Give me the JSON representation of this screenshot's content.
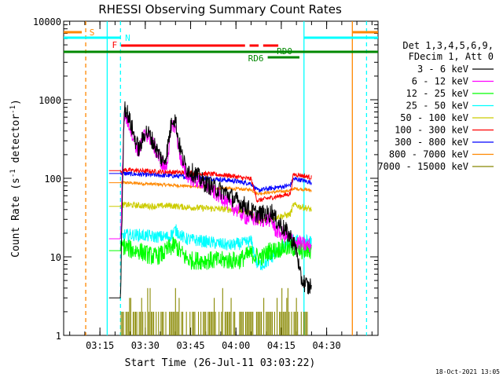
{
  "chart_data": {
    "type": "line",
    "title": "RHESSI Observing Summary Count Rates",
    "xlabel": "Start Time (26-Jul-11 03:03:22)",
    "ylabel": "Count Rate (s⁻¹ detector⁻¹)",
    "ylabel_main": "Count Rate (s",
    "ylabel_sup1": "-1",
    "ylabel_mid": " detector",
    "ylabel_sup2": "-1",
    "ylabel_end": ")",
    "y_scale": "log",
    "ylim": [
      1,
      10000
    ],
    "xlim_minutes": [
      0,
      104
    ],
    "x_ticks": [
      "03:15",
      "03:30",
      "03:45",
      "04:00",
      "04:15",
      "04:30"
    ],
    "y_ticks": [
      "1",
      "10",
      "100",
      "1000",
      "10000"
    ],
    "legend_position": "right",
    "legend_header": [
      "Det 1,3,4,5,6,9,",
      "FDecim 1, Att 0"
    ],
    "timestamp": "18-Oct-2021 13:05",
    "series": [
      {
        "name": "3 - 6 keV",
        "color": "#000000",
        "x": [
          15,
          17,
          18,
          18.8,
          20,
          21,
          21.5,
          22.5,
          24,
          25,
          26,
          27,
          28.5,
          30,
          31,
          32,
          33,
          34,
          35,
          36,
          37,
          38,
          39,
          40,
          41,
          42,
          43,
          44,
          45,
          46,
          48,
          50,
          53,
          55,
          57,
          60,
          62,
          64,
          66,
          68,
          69,
          70,
          72,
          74,
          75,
          76,
          77,
          77.5,
          78,
          79,
          80,
          81,
          82
        ],
        "y": [
          3,
          3,
          3,
          3,
          850,
          700,
          600,
          450,
          280,
          230,
          300,
          400,
          350,
          270,
          220,
          190,
          160,
          200,
          350,
          600,
          550,
          300,
          200,
          150,
          130,
          125,
          115,
          110,
          100,
          90,
          82,
          75,
          68,
          60,
          52,
          45,
          38,
          35,
          35,
          35,
          38,
          30,
          25,
          20,
          18,
          15,
          12,
          10,
          6,
          5,
          4.5,
          4,
          4.5
        ]
      },
      {
        "name": "6 - 12 keV",
        "color": "#ff00ff",
        "x": [
          15,
          18.8,
          20,
          21,
          21.5,
          22.5,
          24,
          25,
          26,
          27,
          28.5,
          30,
          31,
          32,
          33,
          34,
          35,
          36,
          37,
          38,
          39,
          40,
          42,
          45,
          48,
          50,
          53,
          55,
          58,
          60,
          62,
          64,
          66,
          68,
          69,
          70,
          72,
          74,
          75,
          76,
          77,
          78,
          80,
          82
        ],
        "y": [
          17,
          17,
          650,
          550,
          500,
          400,
          250,
          220,
          300,
          380,
          330,
          250,
          200,
          170,
          140,
          140,
          280,
          500,
          450,
          250,
          160,
          120,
          100,
          90,
          75,
          65,
          55,
          45,
          38,
          32,
          31,
          30,
          30,
          30,
          28,
          22,
          20,
          18,
          17,
          16,
          15,
          15,
          14,
          14
        ]
      },
      {
        "name": "12 - 25 keV",
        "color": "#00ff00",
        "x": [
          15,
          18.8,
          19.5,
          21,
          23,
          25,
          27,
          30,
          33,
          35,
          37,
          40,
          42,
          45,
          48,
          50,
          55,
          58,
          60,
          62,
          64,
          66,
          68,
          70,
          72,
          74,
          75,
          76,
          77,
          78,
          80,
          82
        ],
        "y": [
          12,
          12,
          14,
          13,
          12,
          12,
          11,
          10,
          11,
          13,
          14,
          10,
          9,
          9,
          9,
          9,
          9,
          9,
          10,
          11,
          10,
          10,
          12,
          12,
          13,
          13,
          13,
          13,
          13,
          12,
          12,
          12
        ]
      },
      {
        "name": "25 - 50 keV",
        "color": "#00ffff",
        "x": [
          15,
          18.8,
          20,
          25,
          30,
          35,
          37,
          40,
          45,
          50,
          55,
          60,
          62,
          64,
          66,
          68,
          70,
          72,
          74,
          75,
          76,
          78,
          80,
          82
        ],
        "y": [
          17,
          17,
          19,
          19,
          18,
          18,
          22,
          17,
          16,
          15,
          14,
          15,
          16,
          8,
          8,
          9,
          11,
          13,
          14,
          14,
          16,
          16,
          16,
          16
        ]
      },
      {
        "name": "50 - 100 keV",
        "color": "#cccc00",
        "x": [
          15,
          18.8,
          20,
          25,
          30,
          35,
          40,
          45,
          50,
          55,
          60,
          62,
          64,
          66,
          68,
          70,
          72,
          74,
          75,
          76,
          78,
          80,
          82
        ],
        "y": [
          44,
          44,
          46,
          45,
          44,
          45,
          43,
          42,
          41,
          40,
          38,
          37,
          28,
          29,
          30,
          32,
          33,
          34,
          35,
          46,
          44,
          42,
          40
        ]
      },
      {
        "name": "100 - 300 keV",
        "color": "#ff0000",
        "x": [
          15,
          18.8,
          20,
          25,
          30,
          35,
          40,
          45,
          50,
          55,
          60,
          62,
          64,
          66,
          68,
          70,
          72,
          74,
          75,
          76,
          78,
          80,
          82
        ],
        "y": [
          125,
          125,
          128,
          125,
          122,
          120,
          118,
          115,
          112,
          108,
          100,
          98,
          52,
          54,
          56,
          58,
          60,
          62,
          64,
          112,
          110,
          106,
          102
        ]
      },
      {
        "name": "300 - 800 keV",
        "color": "#0000ff",
        "x": [
          15,
          18.8,
          20,
          25,
          30,
          35,
          40,
          45,
          50,
          55,
          60,
          62,
          64,
          66,
          68,
          70,
          72,
          74,
          75,
          76,
          78,
          80,
          82
        ],
        "y": [
          115,
          115,
          115,
          112,
          110,
          108,
          105,
          102,
          98,
          94,
          88,
          86,
          70,
          72,
          74,
          76,
          78,
          80,
          82,
          98,
          96,
          92,
          88
        ]
      },
      {
        "name": "800 - 7000 keV",
        "color": "#ff8800",
        "x": [
          15,
          18.8,
          20,
          25,
          30,
          35,
          40,
          45,
          50,
          55,
          60,
          62,
          64,
          66,
          68,
          70,
          72,
          74,
          75,
          76,
          78,
          80,
          82
        ],
        "y": [
          88,
          88,
          88,
          86,
          84,
          82,
          80,
          78,
          76,
          74,
          72,
          72,
          64,
          65,
          66,
          67,
          68,
          69,
          70,
          74,
          73,
          72,
          70
        ]
      },
      {
        "name": "7000 - 15000 keV",
        "color": "#888800",
        "x": [],
        "y": []
      }
    ],
    "annotations": [
      {
        "label": "S",
        "color": "#ff8800"
      },
      {
        "label": "N",
        "color": "#00ffff"
      },
      {
        "label": "F",
        "color": "#ff0000"
      },
      {
        "label": "RD0",
        "color": "#008800"
      },
      {
        "label": "RD6",
        "color": "#008800"
      }
    ]
  }
}
